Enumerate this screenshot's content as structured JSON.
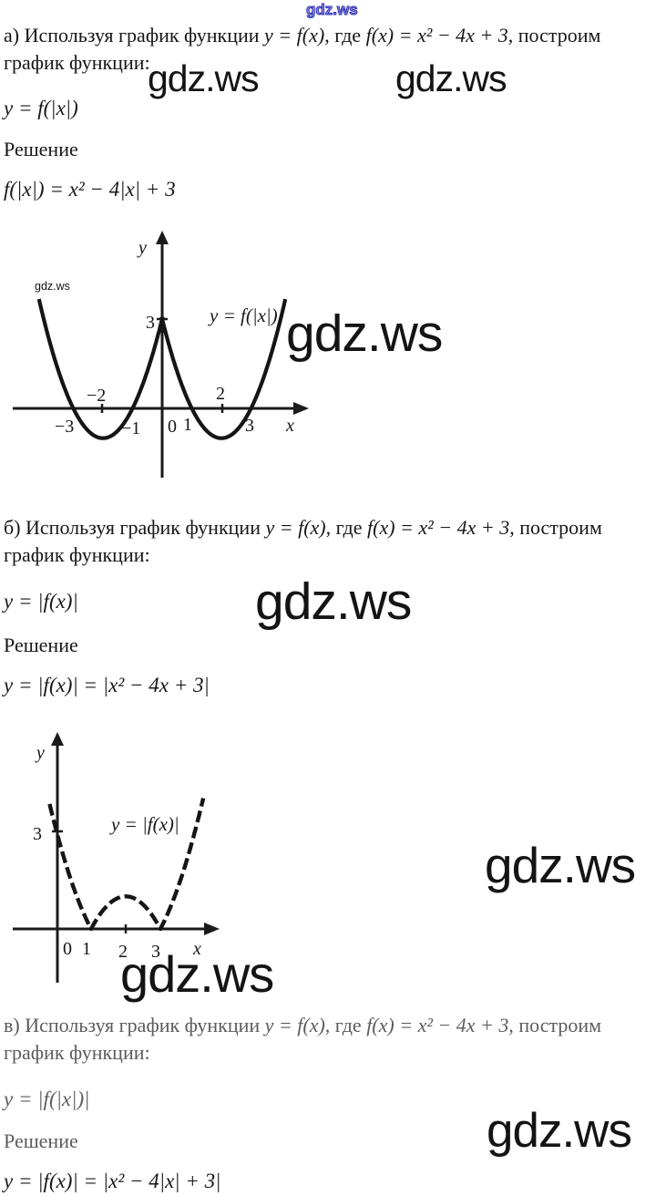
{
  "watermarks": {
    "text": "gdz.ws",
    "blue_outline_color": "#2f2fb8"
  },
  "sections": [
    {
      "id": "a",
      "intro_pre": "а) Используя график функции ",
      "intro_math1": "y = f(x)",
      "intro_mid": ", где ",
      "intro_math2": "f(x) = x² − 4x + 3",
      "intro_post": ", построим",
      "intro_line2": "график функции:",
      "target_formula": "y = f(|x|)",
      "solution_label": "Решение",
      "derivation": "f(|x|) = x² − 4|x| + 3"
    },
    {
      "id": "b",
      "intro_pre": "б) Используя график функции ",
      "intro_math1": "y = f(x)",
      "intro_mid": ", где ",
      "intro_math2": "f(x) = x² − 4x + 3",
      "intro_post": ", построим",
      "intro_line2": "график функции:",
      "target_formula": "y = |f(x)|",
      "solution_label": "Решение",
      "derivation": "y = |f(x)| = |x² − 4x + 3|"
    },
    {
      "id": "v",
      "intro_pre": "в) Используя график функции ",
      "intro_math1": "y = f(x)",
      "intro_mid": ", где ",
      "intro_math2": "f(x) = x² − 4x + 3",
      "intro_post": ", построим",
      "intro_line2": "график функции:",
      "target_formula": "y = |f(|x|)|",
      "solution_label": "Решение",
      "derivation": "y = |f(x)| = |x² − 4|x| + 3|"
    }
  ],
  "chart_data": [
    {
      "type": "line",
      "title": "y = f(|x|)",
      "curve_label": "y = f(|x|)",
      "formula": "y = x² − 4|x| + 3",
      "fn_id": "f_abs_x",
      "x_range": [
        -4.16,
        4.16
      ],
      "ylim": [
        -1.1,
        3.9
      ],
      "xlabel": "x",
      "ylabel": "y",
      "x_ticks": [
        -3,
        -2,
        -1,
        0,
        1,
        2,
        3
      ],
      "x_tick_labels": [
        "−3",
        "−2",
        "−1",
        "0",
        "1",
        "2",
        "3"
      ],
      "y_ticks": [
        3
      ],
      "y_tick_labels": [
        "3"
      ],
      "key_points": {
        "x_intercepts": [
          [
            -3,
            0
          ],
          [
            -1,
            0
          ],
          [
            1,
            0
          ],
          [
            3,
            0
          ]
        ],
        "minima": [
          [
            -2,
            -1
          ],
          [
            2,
            -1
          ]
        ],
        "y_intercept": [
          0,
          3
        ]
      },
      "grid": false,
      "axes_style": "cross-with-arrows"
    },
    {
      "type": "line",
      "title": "y = |f(x)|",
      "curve_label": "y = |f(x)|",
      "formula": "y = |x² − 4x + 3|",
      "fn_id": "abs_f_x",
      "x_range": [
        -0.2,
        4.24
      ],
      "ylim": [
        0,
        4
      ],
      "xlabel": "x",
      "ylabel": "y",
      "x_ticks": [
        0,
        1,
        2,
        3
      ],
      "x_tick_labels": [
        "0",
        "1",
        "2",
        "3"
      ],
      "y_ticks": [
        3
      ],
      "y_tick_labels": [
        "3"
      ],
      "key_points": {
        "x_intercepts": [
          [
            1,
            0
          ],
          [
            3,
            0
          ]
        ],
        "local_max": [
          2,
          1
        ],
        "y_intercept": [
          0,
          3
        ]
      },
      "grid": false,
      "axes_style": "cross-with-arrows",
      "line_style": "dashed"
    }
  ]
}
